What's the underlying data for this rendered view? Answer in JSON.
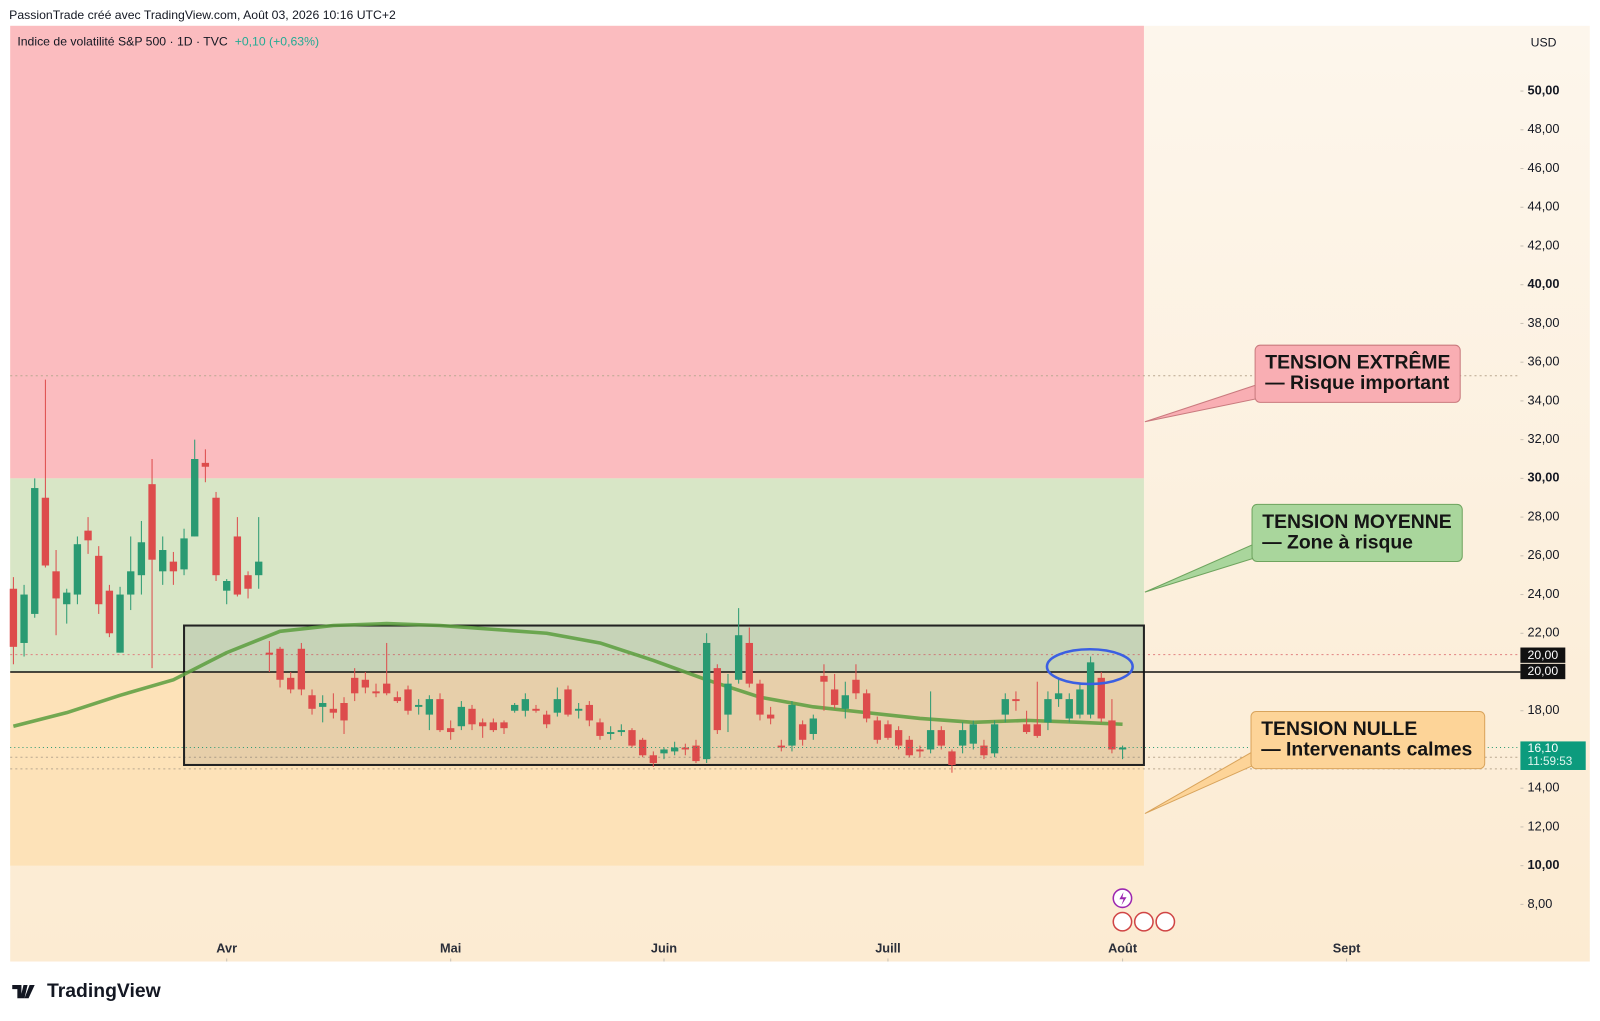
{
  "chart_data": {
    "type": "candlestick",
    "header": "PassionTrade créé avec TradingView.com, Août 03, 2026 10:16 UTC+2",
    "title": "Indice de volatilité S&P 500 · 1D · TVC",
    "change": "+0,10 (+0,63%)",
    "currency": "USD",
    "logo": "TradingView",
    "up_color": "#2a9a72",
    "down_color": "#dd4c4c",
    "open": [
      24.3,
      21.5,
      23.0,
      29.0,
      25.2,
      23.5,
      24.0,
      27.3,
      26.0,
      24.2,
      21.0,
      24.0,
      25.0,
      29.7,
      25.2,
      25.7,
      25.3,
      27.0,
      30.8,
      29.0,
      24.2,
      27.0,
      25.0,
      25.0,
      21.0,
      21.2,
      19.7,
      21.2,
      18.8,
      18.2,
      18.1,
      18.4,
      19.7,
      19.6,
      19.0,
      19.4,
      18.7,
      19.1,
      18.2,
      17.8,
      18.6,
      17.1,
      17.2,
      18.1,
      17.4,
      17.4,
      17.4,
      18.0,
      18.0,
      18.1,
      17.8,
      17.9,
      19.1,
      18.0,
      18.3,
      17.4,
      16.8,
      16.9,
      17.0,
      16.5,
      15.7,
      15.8,
      15.9,
      16.1,
      16.2,
      15.5,
      20.2,
      17.8,
      19.6,
      21.5,
      19.4,
      17.8,
      16.2,
      16.2,
      17.3,
      16.8,
      19.8,
      19.1,
      18.1,
      19.6,
      18.9,
      17.5,
      17.3,
      17.0,
      16.5,
      16.0,
      16.0,
      17.0,
      15.9,
      16.2,
      16.3,
      16.2,
      15.8,
      17.8,
      18.6,
      17.3,
      17.3,
      17.4,
      18.6,
      17.6,
      17.8,
      17.8,
      19.7,
      17.5,
      16.0
    ],
    "high": [
      24.9,
      24.5,
      30.0,
      35.1,
      26.3,
      24.3,
      27.0,
      28.0,
      26.5,
      24.5,
      24.4,
      27.0,
      27.8,
      31.0,
      27.0,
      26.2,
      27.4,
      32.0,
      31.5,
      29.3,
      24.8,
      28.0,
      25.2,
      28.0,
      21.6,
      21.3,
      20.0,
      21.5,
      19.1,
      18.8,
      18.9,
      18.7,
      20.2,
      20.0,
      19.4,
      21.5,
      19.0,
      19.3,
      18.6,
      18.8,
      18.9,
      17.5,
      18.5,
      18.3,
      17.6,
      17.6,
      17.5,
      18.4,
      18.9,
      18.3,
      18.0,
      19.2,
      19.3,
      18.4,
      18.5,
      17.6,
      17.2,
      17.3,
      17.1,
      16.6,
      15.9,
      16.1,
      16.4,
      16.3,
      16.5,
      22.0,
      20.4,
      19.9,
      23.3,
      22.3,
      19.6,
      18.2,
      16.5,
      18.5,
      17.5,
      17.8,
      20.4,
      19.9,
      19.5,
      20.4,
      19.1,
      17.7,
      17.5,
      17.2,
      16.7,
      16.2,
      19.0,
      17.2,
      16.0,
      17.4,
      17.5,
      16.5,
      17.5,
      18.9,
      19.0,
      18.0,
      19.5,
      19.0,
      19.7,
      18.9,
      19.4,
      20.8,
      20.0,
      18.6,
      16.2
    ],
    "low": [
      20.4,
      20.8,
      22.8,
      25.4,
      21.9,
      22.5,
      23.5,
      26.1,
      23.0,
      21.8,
      21.0,
      23.2,
      24.0,
      20.2,
      24.5,
      24.5,
      25.0,
      27.0,
      29.8,
      24.7,
      23.5,
      23.9,
      23.8,
      24.3,
      20.0,
      19.2,
      18.9,
      18.8,
      17.8,
      17.4,
      17.6,
      16.8,
      18.5,
      18.9,
      18.7,
      18.8,
      18.4,
      17.8,
      17.8,
      17.0,
      16.9,
      16.5,
      17.0,
      17.0,
      16.6,
      16.9,
      16.8,
      17.9,
      17.7,
      17.9,
      17.1,
      17.7,
      17.7,
      17.6,
      17.2,
      16.5,
      16.5,
      16.7,
      16.1,
      15.6,
      15.1,
      15.5,
      15.7,
      15.7,
      15.3,
      15.3,
      16.8,
      16.9,
      19.4,
      19.2,
      17.5,
      17.3,
      15.9,
      15.9,
      16.2,
      16.5,
      18.0,
      18.1,
      17.6,
      18.6,
      17.4,
      16.3,
      16.5,
      16.0,
      15.6,
      15.6,
      15.8,
      16.0,
      14.8,
      15.8,
      16.0,
      15.5,
      15.6,
      17.4,
      18.0,
      16.8,
      16.6,
      17.0,
      18.2,
      17.4,
      17.6,
      17.6,
      17.4,
      15.8,
      15.5
    ],
    "close": [
      21.3,
      24.0,
      29.5,
      25.5,
      23.8,
      24.1,
      26.6,
      26.8,
      23.5,
      22.0,
      24.0,
      25.2,
      26.7,
      25.8,
      26.3,
      25.2,
      26.9,
      31.0,
      30.6,
      25.0,
      24.7,
      24.0,
      24.3,
      25.7,
      20.9,
      19.6,
      19.1,
      19.1,
      18.1,
      18.4,
      17.9,
      17.5,
      18.9,
      19.2,
      18.9,
      18.9,
      18.5,
      18.0,
      18.3,
      18.6,
      17.0,
      16.9,
      18.2,
      17.3,
      17.2,
      17.0,
      17.1,
      18.3,
      18.6,
      18.0,
      17.3,
      18.6,
      17.8,
      18.1,
      17.5,
      16.7,
      16.9,
      17.0,
      16.2,
      15.7,
      15.3,
      16.0,
      16.1,
      16.0,
      15.4,
      21.5,
      17.0,
      19.4,
      21.9,
      19.4,
      17.8,
      17.6,
      16.1,
      18.3,
      16.5,
      17.6,
      19.5,
      18.3,
      18.8,
      18.9,
      17.6,
      16.5,
      16.6,
      16.2,
      15.7,
      15.9,
      17.0,
      16.2,
      15.2,
      17.0,
      17.3,
      15.7,
      17.3,
      18.6,
      18.5,
      16.9,
      16.7,
      18.6,
      18.9,
      18.6,
      19.1,
      20.5,
      17.6,
      16.0,
      16.1
    ],
    "ma": {
      "color": "#5a9e3e",
      "x": [
        0,
        5,
        10,
        15,
        20,
        25,
        30,
        35,
        40,
        45,
        50,
        55,
        60,
        65,
        70,
        75,
        80,
        85,
        90,
        95,
        100,
        104
      ],
      "values": [
        17.2,
        17.9,
        18.8,
        19.6,
        21.0,
        22.1,
        22.4,
        22.5,
        22.4,
        22.2,
        22.0,
        21.5,
        20.6,
        19.6,
        18.7,
        18.2,
        17.9,
        17.6,
        17.4,
        17.5,
        17.4,
        17.3
      ]
    },
    "xlim": [
      -0.3,
      141.3
    ],
    "ylim": [
      5.05,
      53.37
    ],
    "xticks": [
      {
        "value": 20,
        "label": "Avr"
      },
      {
        "value": 41,
        "label": "Mai"
      },
      {
        "value": 61,
        "label": "Juin"
      },
      {
        "value": 82,
        "label": "Juill"
      },
      {
        "value": 104,
        "label": "Août"
      },
      {
        "value": 125,
        "label": "Sept"
      }
    ],
    "yticks": [
      {
        "value": 8,
        "label": "8,00"
      },
      {
        "value": 10,
        "label": "10,00"
      },
      {
        "value": 12,
        "label": "12,00"
      },
      {
        "value": 14,
        "label": "14,00"
      },
      {
        "value": 16,
        "label": "16,00"
      },
      {
        "value": 18,
        "label": "18,00"
      },
      {
        "value": 22,
        "label": "22,00"
      },
      {
        "value": 24,
        "label": "24,00"
      },
      {
        "value": 26,
        "label": "26,00"
      },
      {
        "value": 28,
        "label": "28,00"
      },
      {
        "value": 30,
        "label": "30,00"
      },
      {
        "value": 32,
        "label": "32,00"
      },
      {
        "value": 34,
        "label": "34,00"
      },
      {
        "value": 36,
        "label": "36,00"
      },
      {
        "value": 38,
        "label": "38,00"
      },
      {
        "value": 40,
        "label": "40,00"
      },
      {
        "value": 42,
        "label": "42,00"
      },
      {
        "value": 44,
        "label": "44,00"
      },
      {
        "value": 46,
        "label": "46,00"
      },
      {
        "value": 48,
        "label": "48,00"
      },
      {
        "value": 50,
        "label": "50,00"
      }
    ],
    "zones": [
      {
        "from": 30,
        "color": "#fbbcbf"
      },
      {
        "from": 20,
        "to": 30,
        "color": "#d8e6c6"
      },
      {
        "from": 10,
        "to": 20,
        "color": "#fde2b8"
      }
    ],
    "zone_end": 106,
    "box": {
      "x": [
        16,
        106
      ],
      "y": [
        15.2,
        22.4
      ]
    },
    "levels": [
      35.3,
      20.9,
      15.6,
      15.0
    ],
    "hline": {
      "value": 20,
      "labels": [
        "20,00",
        "20,00"
      ]
    },
    "last_price": {
      "value": 16.1,
      "label": "16,10",
      "countdown": "11:59:53"
    },
    "annotations": [
      {
        "lines": [
          "TENSION EXTRÊME",
          "— Risque important"
        ],
        "color": "#f9aeb3",
        "border": "#c97a7e"
      },
      {
        "lines": [
          "TENSION MOYENNE",
          "— Zone à risque"
        ],
        "color": "#a9d69c",
        "border": "#6ea45e"
      },
      {
        "lines": [
          "TENSION NULLE",
          "— Intervenants calmes"
        ],
        "color": "#fdd498",
        "border": "#d9a45c"
      }
    ]
  }
}
